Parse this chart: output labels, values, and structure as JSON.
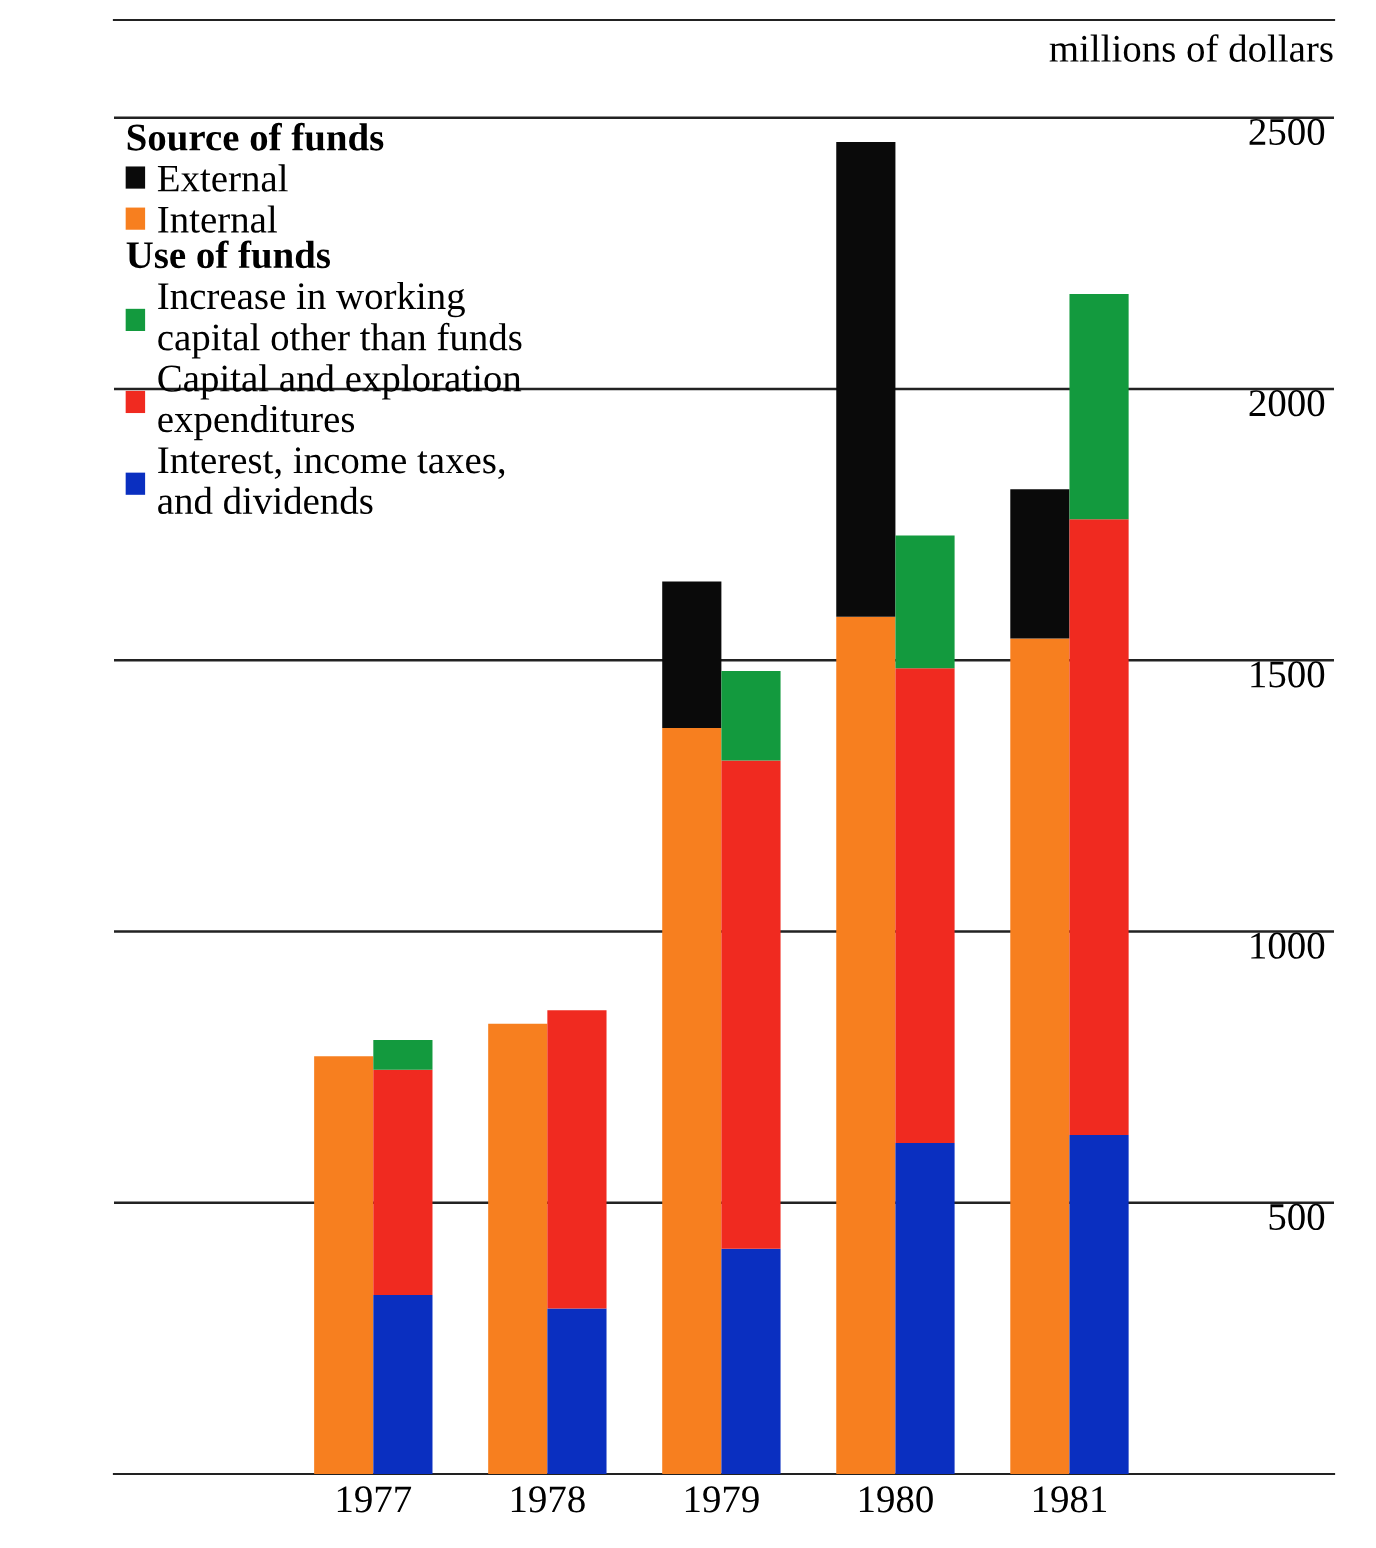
{
  "chart_data": [
    {
      "type": "bar",
      "stacked": true,
      "ylabel": "millions of dollars",
      "legend_title": "Source of funds",
      "x": [
        1976.83,
        1977.83,
        1978.83,
        1979.83,
        1980.83
      ],
      "series": [
        {
          "name": "Internal",
          "color": "#f77f1f",
          "values": [
            770,
            830,
            1375,
            1580,
            1540
          ]
        },
        {
          "name": "External",
          "color": "#0a0a0a",
          "values": [
            null,
            null,
            270,
            875,
            275
          ]
        }
      ],
      "xlim": [
        1975.51,
        1982.52
      ],
      "xticks": [
        1977,
        1978,
        1979,
        1980,
        1981
      ],
      "ylim": [
        0,
        2680
      ],
      "yticks": [
        500,
        1000,
        1500,
        2000,
        2500
      ],
      "grid": "y",
      "legend": "top left"
    },
    {
      "type": "bar",
      "stacked": true,
      "legend_title": "Use of funds",
      "x": [
        1977.17,
        1978.17,
        1979.17,
        1980.17,
        1981.17
      ],
      "series": [
        {
          "name": "Interest, income taxes,\nand dividends",
          "color": "#0a2fc0",
          "values": [
            330,
            305,
            415,
            610,
            625
          ]
        },
        {
          "name": "Capital and exploration\nexpenditures",
          "color": "#f02a20",
          "values": [
            415,
            550,
            900,
            875,
            1135
          ]
        },
        {
          "name": "Increase in working\ncapital other than funds",
          "color": "#139a3e",
          "values": [
            55,
            null,
            165,
            245,
            415
          ]
        }
      ],
      "xlim": [
        1975.51,
        1982.52
      ],
      "xticks": [
        1977,
        1978,
        1979,
        1980,
        1981
      ],
      "ylim": [
        0,
        2680
      ],
      "yticks": [
        500,
        1000,
        1500,
        2000,
        2500
      ],
      "tick_labels": false,
      "legend": "top left"
    }
  ]
}
